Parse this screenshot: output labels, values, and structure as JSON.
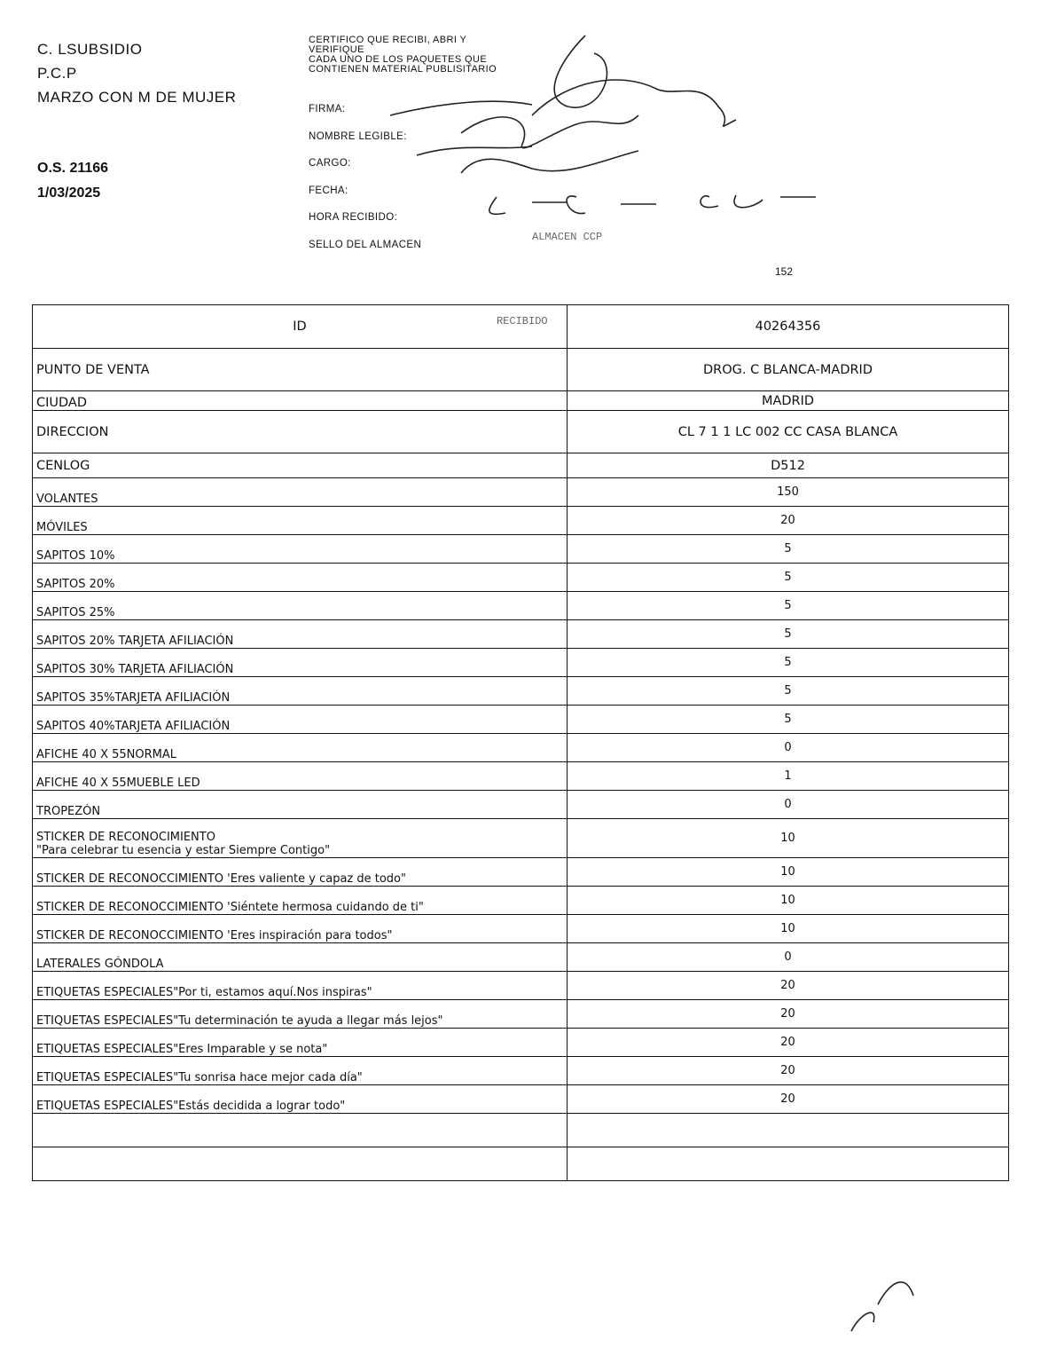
{
  "header": {
    "org_lines": [
      "C. LSUBSIDIO",
      "P.C.P",
      "MARZO CON M DE MUJER"
    ],
    "order_number": "O.S. 21166",
    "order_date": "1/03/2025",
    "certification": [
      "CERTIFICO QUE RECIBI, ABRI Y",
      "VERIFIQUE",
      "CADA UNO DE LOS PAQUETES QUE",
      "CONTIENEN MATERIAL PUBLISITARIO"
    ],
    "fields": [
      "FIRMA:",
      "NOMBRE LEGIBLE:",
      "CARGO:",
      "FECHA:",
      "HORA RECIBIDO:",
      "SELLO DEL ALMACEN"
    ],
    "handwritten_date": "4-03-2025",
    "page_number": "152"
  },
  "table": {
    "rows": [
      {
        "label": "ID",
        "value": "40264356"
      },
      {
        "label": "PUNTO DE VENTA",
        "value": "DROG. C BLANCA-MADRID"
      },
      {
        "label": "CIUDAD",
        "value": "MADRID"
      },
      {
        "label": "DIRECCION",
        "value": "CL 7 1 1 LC 002 CC CASA BLANCA"
      },
      {
        "label": "CENLOG",
        "value": "D512"
      },
      {
        "label": "VOLANTES",
        "value": "150"
      },
      {
        "label": "MÓVILES",
        "value": "20"
      },
      {
        "label": "SAPITOS 10%",
        "value": "5"
      },
      {
        "label": "SAPITOS 20%",
        "value": "5"
      },
      {
        "label": "SAPITOS 25%",
        "value": "5"
      },
      {
        "label": "SAPITOS 20% TARJETA AFILIACIÓN",
        "value": "5"
      },
      {
        "label": "SAPITOS 30% TARJETA AFILIACIÓN",
        "value": "5"
      },
      {
        "label": "SAPITOS 35%TARJETA AFILIACIÓN",
        "value": "5"
      },
      {
        "label": "SAPITOS 40%TARJETA AFILIACIÓN",
        "value": "5"
      },
      {
        "label": "AFICHE 40 X 55NORMAL",
        "value": "0"
      },
      {
        "label": "AFICHE 40 X 55MUEBLE LED",
        "value": "1"
      },
      {
        "label": "TROPEZÓN",
        "value": "0"
      },
      {
        "label": "STICKER DE RECONOCIMIENTO",
        "label2": "\"Para celebrar tu esencia y estar Siempre Contigo\"",
        "value": "10"
      },
      {
        "label": "STICKER DE RECONOCCIMIENTO 'Eres valiente y capaz de todo\"",
        "value": "10"
      },
      {
        "label": "STICKER DE RECONOCCIMIENTO 'Siéntete hermosa cuidando de ti\"",
        "value": "10"
      },
      {
        "label": "STICKER DE RECONOCCIMIENTO 'Eres inspiración para todos\"",
        "value": "10"
      },
      {
        "label": "LATERALES GÓNDOLA",
        "value": "0"
      },
      {
        "label": "ETIQUETAS ESPECIALES\"Por ti, estamos aquí.Nos inspiras\"",
        "value": "20"
      },
      {
        "label": "ETIQUETAS ESPECIALES\"Tu determinación te ayuda a llegar más lejos\"",
        "value": "20"
      },
      {
        "label": "ETIQUETAS ESPECIALES\"Eres Imparable y se nota\"",
        "value": "20"
      },
      {
        "label": "ETIQUETAS ESPECIALES\"Tu sonrisa hace mejor cada día\"",
        "value": "20"
      },
      {
        "label": "ETIQUETAS ESPECIALES\"Estás decidida a lograr todo\"",
        "value": "20"
      },
      {
        "label": "",
        "value": ""
      },
      {
        "label": "",
        "value": ""
      }
    ]
  }
}
